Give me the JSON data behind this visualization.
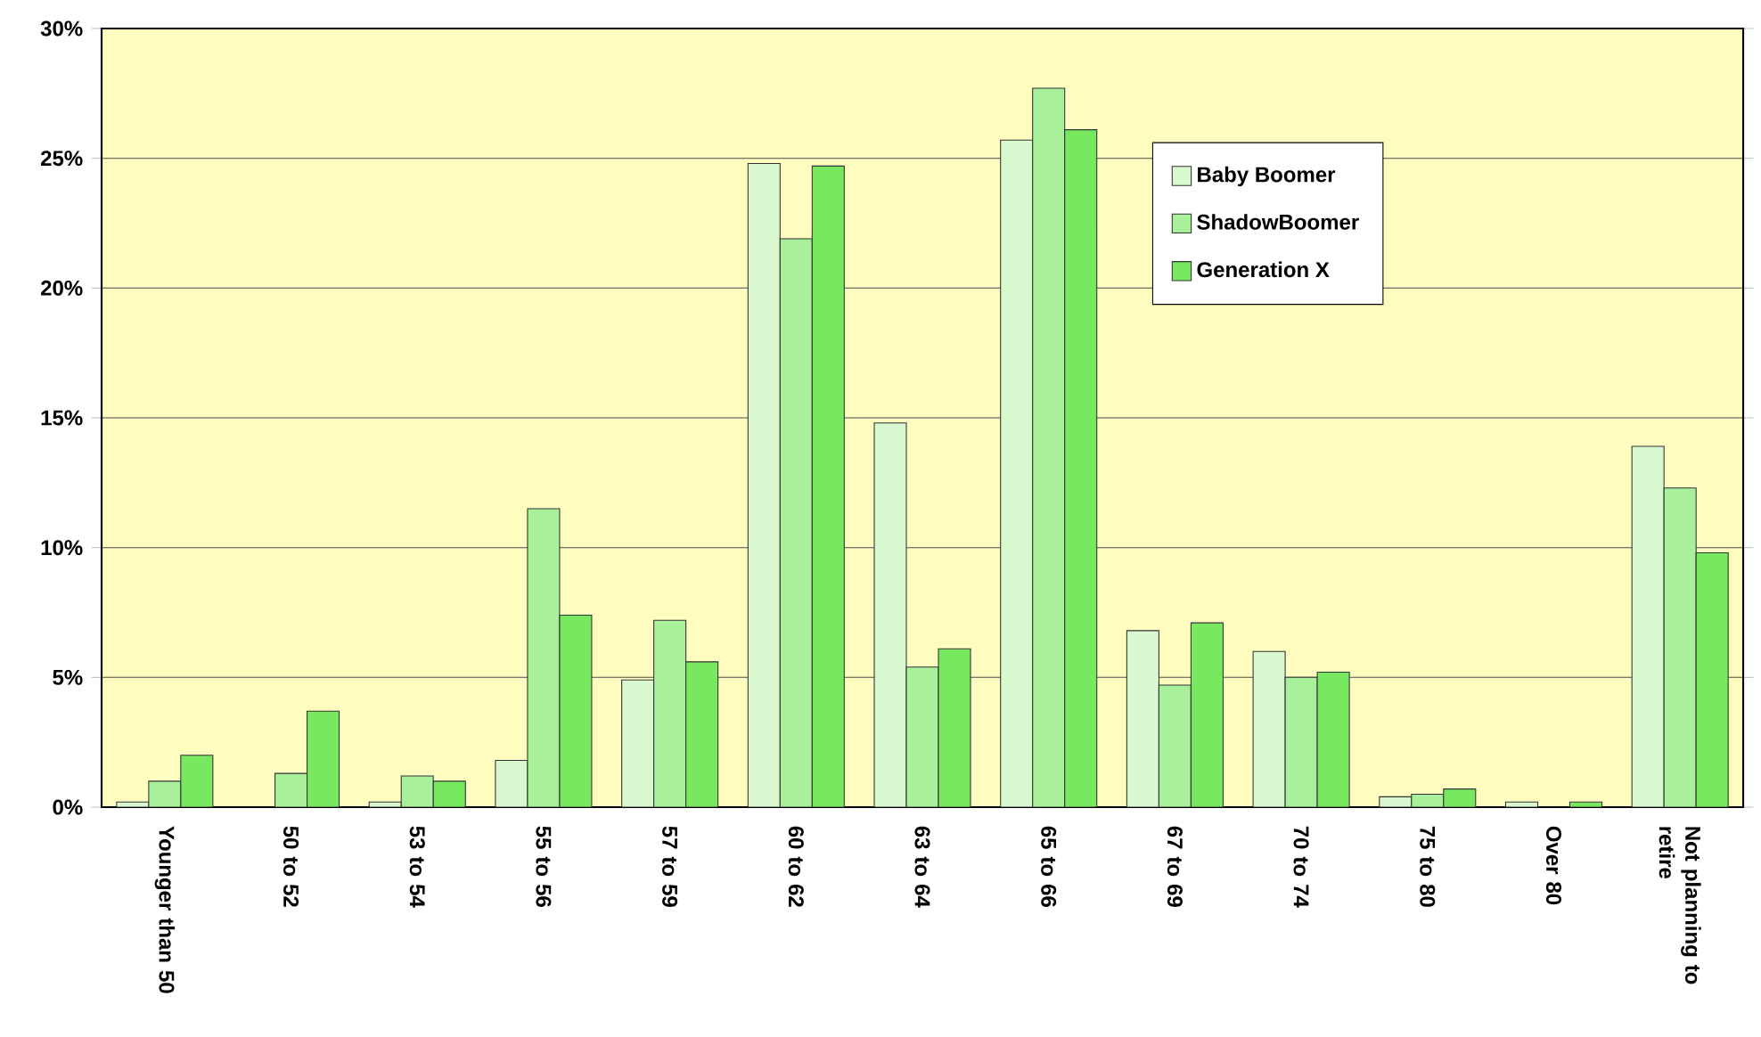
{
  "chart_data": {
    "type": "bar",
    "categories": [
      "Younger than 50",
      "50 to 52",
      "53 to 54",
      "55 to 56",
      "57 to 59",
      "60 to 62",
      "63 to 64",
      "65 to 66",
      "67 to 69",
      "70 to 74",
      "75 to 80",
      "Over 80",
      "Not planning to retire"
    ],
    "series": [
      {
        "name": "Baby Boomer",
        "color": "#d9f8d0",
        "values": [
          0.2,
          null,
          0.2,
          1.8,
          4.9,
          24.8,
          14.8,
          25.7,
          6.8,
          6.0,
          0.4,
          0.2,
          13.9
        ]
      },
      {
        "name": "ShadowBoomer",
        "color": "#a8f09a",
        "values": [
          1.0,
          1.3,
          1.2,
          11.5,
          7.2,
          21.9,
          5.4,
          27.7,
          4.7,
          5.0,
          0.5,
          null,
          12.3
        ]
      },
      {
        "name": "Generation X",
        "color": "#78e860",
        "values": [
          2.0,
          3.7,
          1.0,
          7.4,
          5.6,
          24.7,
          6.1,
          26.1,
          7.1,
          5.2,
          0.7,
          0.2,
          9.8
        ]
      }
    ],
    "ylim": [
      0,
      30
    ],
    "yticks": [
      {
        "value": 0,
        "label": "0%"
      },
      {
        "value": 5,
        "label": "5%"
      },
      {
        "value": 10,
        "label": "10%"
      },
      {
        "value": 15,
        "label": "15%"
      },
      {
        "value": 20,
        "label": "20%"
      },
      {
        "value": 25,
        "label": "25%"
      },
      {
        "value": 30,
        "label": "30%"
      }
    ],
    "grid": "y",
    "legend": "top right"
  }
}
